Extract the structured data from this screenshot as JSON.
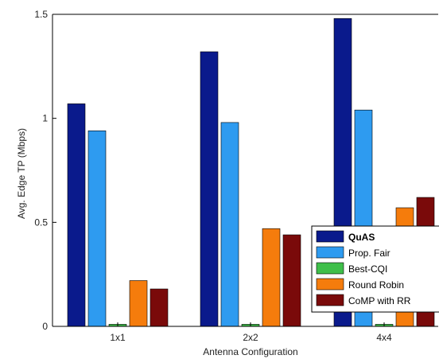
{
  "chart_data": {
    "type": "bar",
    "title": "",
    "xlabel": "Antenna Configuration",
    "ylabel": "Avg. Edge TP (Mbps)",
    "ylim": [
      0,
      1.5
    ],
    "yticks": [
      "0",
      "0.5",
      "1",
      "1.5"
    ],
    "ytick_values": [
      0,
      0.5,
      1,
      1.5
    ],
    "categories": [
      "1x1",
      "2x2",
      "4x4"
    ],
    "grid": false,
    "legend_position": "bottom-right",
    "series": [
      {
        "name": "QuAS",
        "color": "#0a1a8c",
        "values": [
          1.07,
          1.32,
          1.48
        ]
      },
      {
        "name": "Prop. Fair",
        "color": "#2e9bf0",
        "values": [
          0.94,
          0.98,
          1.04
        ]
      },
      {
        "name": "Best-CQI",
        "color": "#3fbf4a",
        "values": [
          0.01,
          0.01,
          0.01
        ]
      },
      {
        "name": "Round Robin",
        "color": "#f57c0c",
        "values": [
          0.22,
          0.47,
          0.57
        ]
      },
      {
        "name": "CoMP with RR",
        "color": "#7a0a0a",
        "values": [
          0.18,
          0.44,
          0.62
        ]
      }
    ]
  }
}
